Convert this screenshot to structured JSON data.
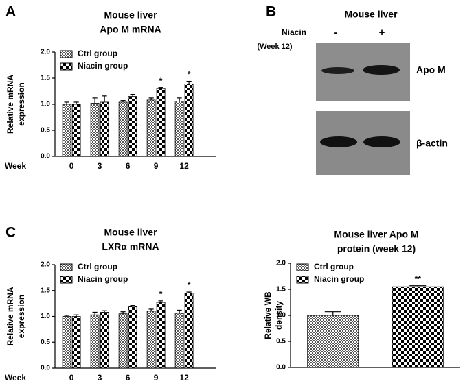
{
  "chart_data": [
    {
      "type": "bar",
      "panel": "A",
      "title": "Mouse liver",
      "subtitle": "Apo M mRNA",
      "ylabel": [
        "Relative mRNA",
        "expression"
      ],
      "xlabel": "Week",
      "categories": [
        "0",
        "3",
        "6",
        "9",
        "12"
      ],
      "series": [
        {
          "name": "Ctrl group",
          "color": "#555555",
          "values": [
            1.0,
            1.02,
            1.04,
            1.08,
            1.06
          ],
          "errors": [
            0.04,
            0.1,
            0.03,
            0.04,
            0.06
          ]
        },
        {
          "name": "Niacin group",
          "color": "#000000",
          "values": [
            1.0,
            1.04,
            1.15,
            1.3,
            1.39
          ],
          "errors": [
            0.04,
            0.12,
            0.04,
            0.02,
            0.05
          ],
          "significance": [
            null,
            null,
            null,
            "*",
            "*"
          ]
        }
      ],
      "ylim": [
        0,
        2
      ],
      "yticks": [
        {
          "value": 0,
          "label": "0.0"
        },
        {
          "value": 0.5,
          "label": "0.5"
        },
        {
          "value": 1,
          "label": "1.0"
        },
        {
          "value": 1.5,
          "label": "1.5"
        },
        {
          "value": 2,
          "label": "2.0"
        }
      ]
    },
    {
      "type": "bar",
      "panel": "C",
      "title": "Mouse liver",
      "subtitle": "LXRα mRNA",
      "ylabel": [
        "Relative mRNA",
        "expression"
      ],
      "xlabel": "Week",
      "categories": [
        "0",
        "3",
        "6",
        "9",
        "12"
      ],
      "series": [
        {
          "name": "Ctrl group",
          "color": "#555555",
          "values": [
            1.0,
            1.03,
            1.05,
            1.1,
            1.06
          ],
          "errors": [
            0.02,
            0.05,
            0.04,
            0.04,
            0.06
          ]
        },
        {
          "name": "Niacin group",
          "color": "#000000",
          "values": [
            1.0,
            1.08,
            1.19,
            1.27,
            1.45
          ],
          "errors": [
            0.03,
            0.03,
            0.02,
            0.03,
            0.02
          ],
          "significance": [
            null,
            null,
            null,
            "*",
            "*"
          ]
        }
      ],
      "ylim": [
        0,
        2
      ],
      "yticks": [
        {
          "value": 0,
          "label": "0.0"
        },
        {
          "value": 0.5,
          "label": "0.5"
        },
        {
          "value": 1,
          "label": "1.0"
        },
        {
          "value": 1.5,
          "label": "1.5"
        },
        {
          "value": 2,
          "label": "2.0"
        }
      ]
    },
    {
      "type": "bar",
      "title": "Mouse liver Apo M",
      "subtitle": "protein (week 12)",
      "ylabel": [
        "Relative WB",
        "density"
      ],
      "series": [
        {
          "name": "Ctrl group",
          "color": "#555555",
          "values": [
            1.0
          ],
          "errors": [
            0.07
          ]
        },
        {
          "name": "Niacin group",
          "color": "#000000",
          "values": [
            1.55
          ],
          "errors": [
            0.02
          ],
          "significance": [
            "**"
          ]
        }
      ],
      "ylim": [
        0,
        2
      ],
      "yticks": [
        {
          "value": 0,
          "label": "0.0"
        },
        {
          "value": 0.5,
          "label": "0.5"
        },
        {
          "value": 1,
          "label": "1.0"
        },
        {
          "value": 1.5,
          "label": "1.5"
        },
        {
          "value": 2,
          "label": "2.0"
        }
      ]
    }
  ],
  "blot": {
    "panel": "B",
    "title": "Mouse liver",
    "treatment": "Niacin",
    "timepoint": "(Week 12)",
    "lanes": [
      "-",
      "+"
    ],
    "bands": [
      "Apo M",
      "β-actin"
    ]
  }
}
